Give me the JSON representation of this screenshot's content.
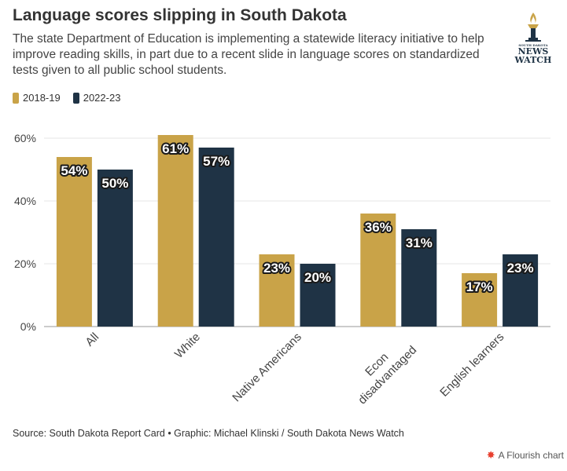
{
  "header": {
    "title": "Language scores slipping in South Dakota",
    "subtitle": "The state Department of Education is implementing a statewide literacy initiative to help improve reading skills, in part due to a recent slide in language scores on standardized tests given to all public school students."
  },
  "logo": {
    "line1": "SOUTH DAKOTA",
    "line2": "NEWS",
    "line3": "WATCH",
    "icon": "torch-icon"
  },
  "legend": {
    "items": [
      {
        "label": "2018-19",
        "color": "#c9a348"
      },
      {
        "label": "2022-23",
        "color": "#1f3345"
      }
    ]
  },
  "chart_data": {
    "type": "bar",
    "title": "Language scores slipping in South Dakota",
    "categories": [
      "All",
      "White",
      "Native Americans",
      "Econ disadvantaged",
      "English learners"
    ],
    "series": [
      {
        "name": "2018-19",
        "color": "#c9a348",
        "values": [
          54,
          61,
          23,
          36,
          17
        ]
      },
      {
        "name": "2022-23",
        "color": "#1f3345",
        "values": [
          50,
          57,
          20,
          31,
          23
        ]
      }
    ],
    "ylim": [
      0,
      60
    ],
    "yticks": [
      0,
      20,
      40,
      60
    ],
    "ytick_labels": [
      "0%",
      "20%",
      "40%",
      "60%"
    ],
    "value_suffix": "%",
    "xlabel": "",
    "ylabel": "",
    "grid": true,
    "legend_position": "top-left"
  },
  "footer": {
    "source": "Source: South Dakota Report Card • Graphic: Michael Klinski / South Dakota News Watch",
    "credit": "A Flourish chart"
  }
}
